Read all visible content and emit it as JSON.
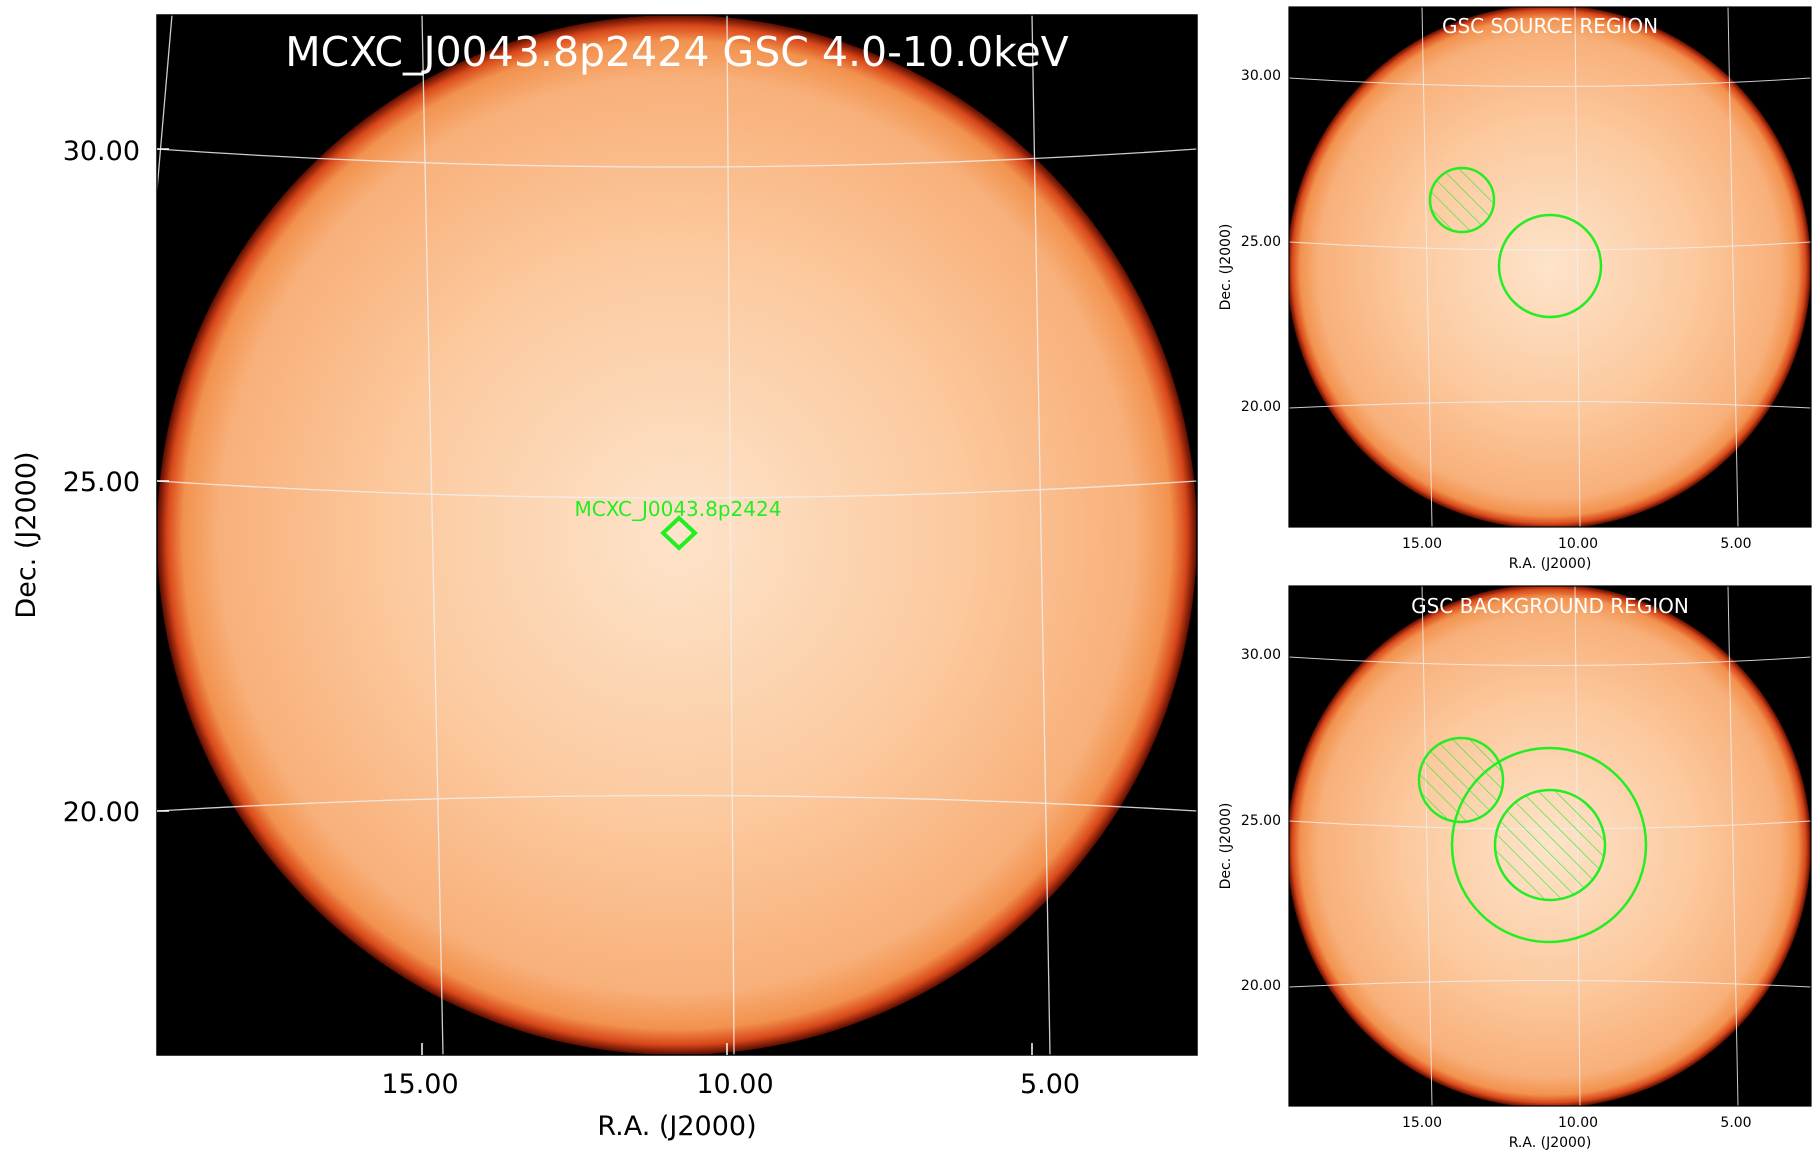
{
  "main_panel": {
    "title": "MCXC_J0043.8p2424 GSC 4.0-10.0keV",
    "xlabel": "R.A. (J2000)",
    "ylabel": "Dec. (J2000)",
    "xticks": [
      "15.00",
      "10.00",
      "5.00"
    ],
    "yticks": [
      "30.00",
      "25.00",
      "20.00"
    ],
    "source_label": "MCXC_J0043.8p2424",
    "marker_shape": "diamond"
  },
  "source_panel": {
    "title": "GSC SOURCE REGION",
    "xlabel": "R.A. (J2000)",
    "ylabel": "Dec. (J2000)",
    "xticks": [
      "15.00",
      "10.00",
      "5.00"
    ],
    "yticks": [
      "30.00",
      "25.00",
      "20.00"
    ]
  },
  "background_panel": {
    "title": "GSC BACKGROUND REGION",
    "xlabel": "R.A. (J2000)",
    "ylabel": "Dec. (J2000)",
    "xticks": [
      "15.00",
      "10.00",
      "5.00"
    ],
    "yticks": [
      "30.00",
      "25.00",
      "20.00"
    ]
  },
  "colors": {
    "disk_center": "#fde2c7",
    "disk_mid": "#fbc294",
    "disk_edge": "#f3a06a",
    "rim": "#d43a0e",
    "sky": "#000000",
    "region": "#22ee22",
    "grid": "#e8e8e8",
    "title_text": "#ffffff"
  }
}
